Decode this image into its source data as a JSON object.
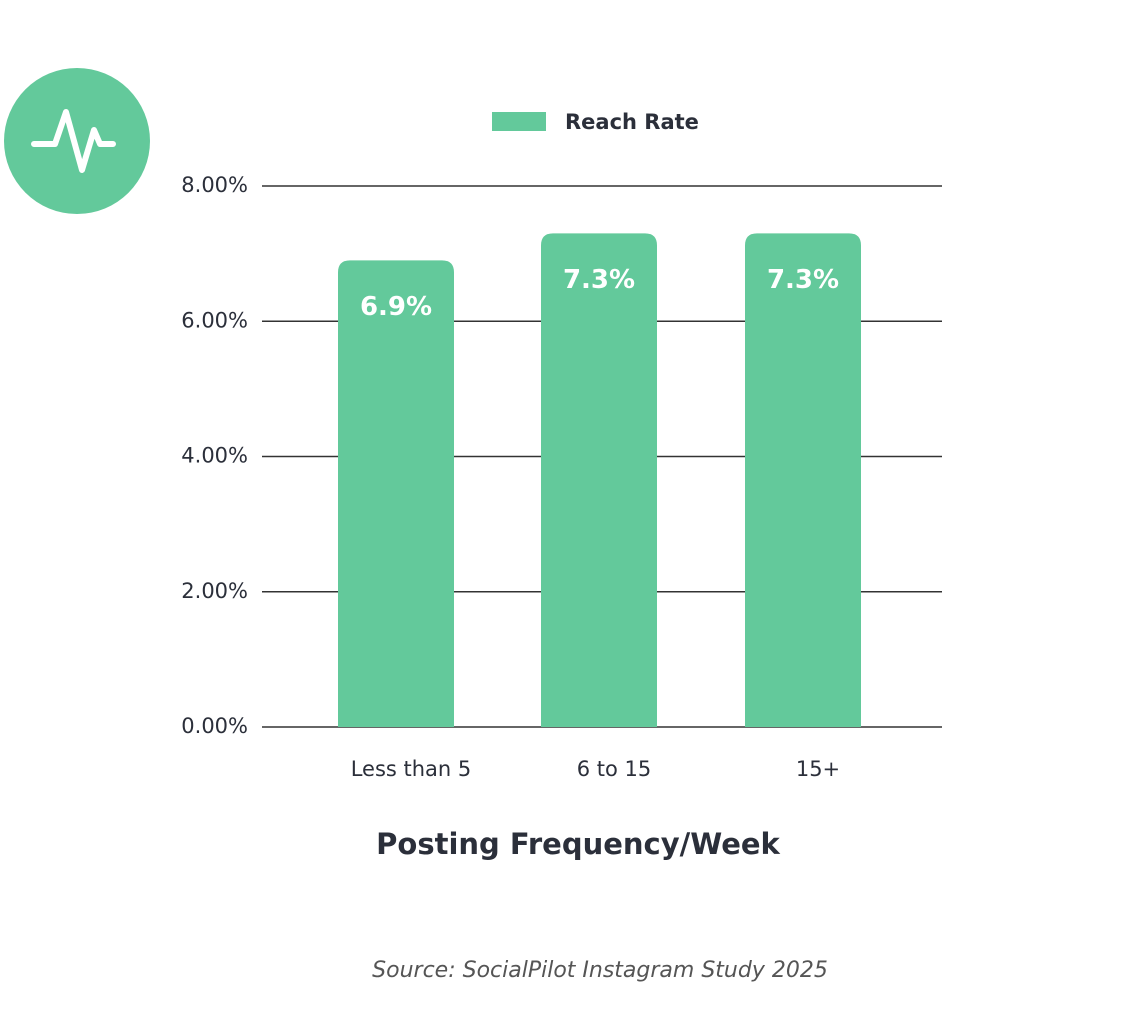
{
  "chart_data": {
    "type": "bar",
    "legend": "Reach Rate",
    "x_label": "Posting Frequency/Week",
    "source": "Source: SocialPilot Instagram Study 2025",
    "categories": [
      "Less than 5",
      "6 to 15",
      "15+"
    ],
    "values": [
      6.9,
      7.3,
      7.3
    ],
    "value_labels": [
      "6.9%",
      "7.3%",
      "7.3%"
    ],
    "color": "#63c99b",
    "ylim": [
      0,
      8
    ],
    "yticks": [
      {
        "value": 0,
        "label": "0.00%"
      },
      {
        "value": 2,
        "label": "2.00%"
      },
      {
        "value": 4,
        "label": "4.00%"
      },
      {
        "value": 6,
        "label": "6.00%"
      },
      {
        "value": 8,
        "label": "8.00%"
      }
    ],
    "grid": true
  }
}
